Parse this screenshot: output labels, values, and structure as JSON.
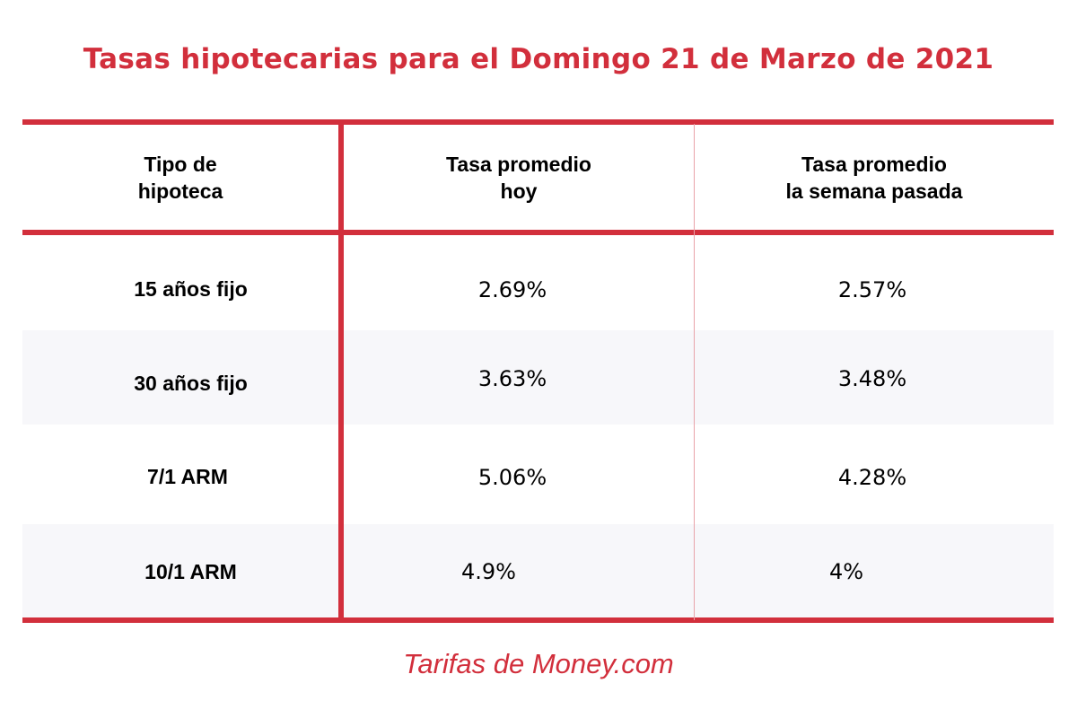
{
  "title": "Tasas hipotecarias para el Domingo 21 de Marzo de 2021",
  "footer": "Tarifas de Money.com",
  "colors": {
    "accent": "#d22f3c",
    "thin_divider": "#e9a3a9",
    "stripe": "#f7f7fa",
    "text": "#000000"
  },
  "chart_data": {
    "type": "table",
    "title": "Tasas hipotecarias para el Domingo 21 de Marzo de 2021",
    "columns": [
      {
        "line1": "Tipo de",
        "line2": "hipoteca"
      },
      {
        "line1": "Tasa promedio",
        "line2": "hoy"
      },
      {
        "line1": "Tasa promedio",
        "line2": "la semana pasada"
      }
    ],
    "rows": [
      {
        "type": "15 años fijo",
        "today": "2.69%",
        "last_week": "2.57%"
      },
      {
        "type": "30 años fijo",
        "today": "3.63%",
        "last_week": "3.48%"
      },
      {
        "type": "7/1 ARM",
        "today": "5.06%",
        "last_week": "4.28%"
      },
      {
        "type": "10/1 ARM",
        "today": "4.9%",
        "last_week": "4%"
      }
    ]
  }
}
